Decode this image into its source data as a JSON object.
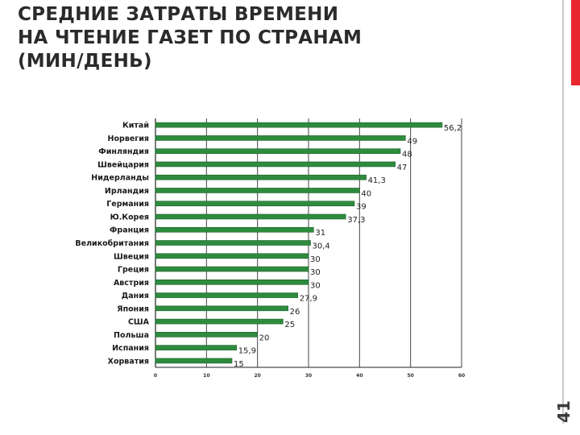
{
  "slide": {
    "title_lines": [
      "СРЕДНИЕ ЗАТРАТЫ ВРЕМЕНИ",
      "НА ЧТЕНИЕ ГАЗЕТ ПО СТРАНАМ",
      "(МИН/ДЕНЬ)"
    ],
    "page_number": "41"
  },
  "colors": {
    "bar": "#2e8b3e",
    "bar_stroke": "#1f5f2a",
    "accent": "#e8262f",
    "grid": "#444444"
  },
  "chart_data": {
    "type": "bar",
    "orientation": "horizontal",
    "categories": [
      "Китай",
      "Норвегия",
      "Финляндия",
      "Швейцария",
      "Нидерланды",
      "Ирландия",
      "Германия",
      "Ю.Корея",
      "Франция",
      "Великобритания",
      "Швеция",
      "Греция",
      "Австрия",
      "Дания",
      "Япония",
      "США",
      "Польша",
      "Испания",
      "Хорватия"
    ],
    "values": [
      56.2,
      49,
      48,
      47,
      41.3,
      40,
      39,
      37.3,
      31,
      30.4,
      30,
      30,
      30,
      27.9,
      26,
      25,
      20,
      15.9,
      15
    ],
    "value_labels": [
      "56,2",
      "49",
      "48",
      "47",
      "41,3",
      "40",
      "39",
      "37,3",
      "31",
      "30,4",
      "30",
      "30",
      "30",
      "27,9",
      "26",
      "25",
      "20",
      "15,9",
      "15"
    ],
    "x_ticks": [
      0,
      10,
      20,
      30,
      40,
      50,
      60
    ],
    "xlim": [
      0,
      60
    ],
    "grid": true,
    "legend": "none"
  }
}
